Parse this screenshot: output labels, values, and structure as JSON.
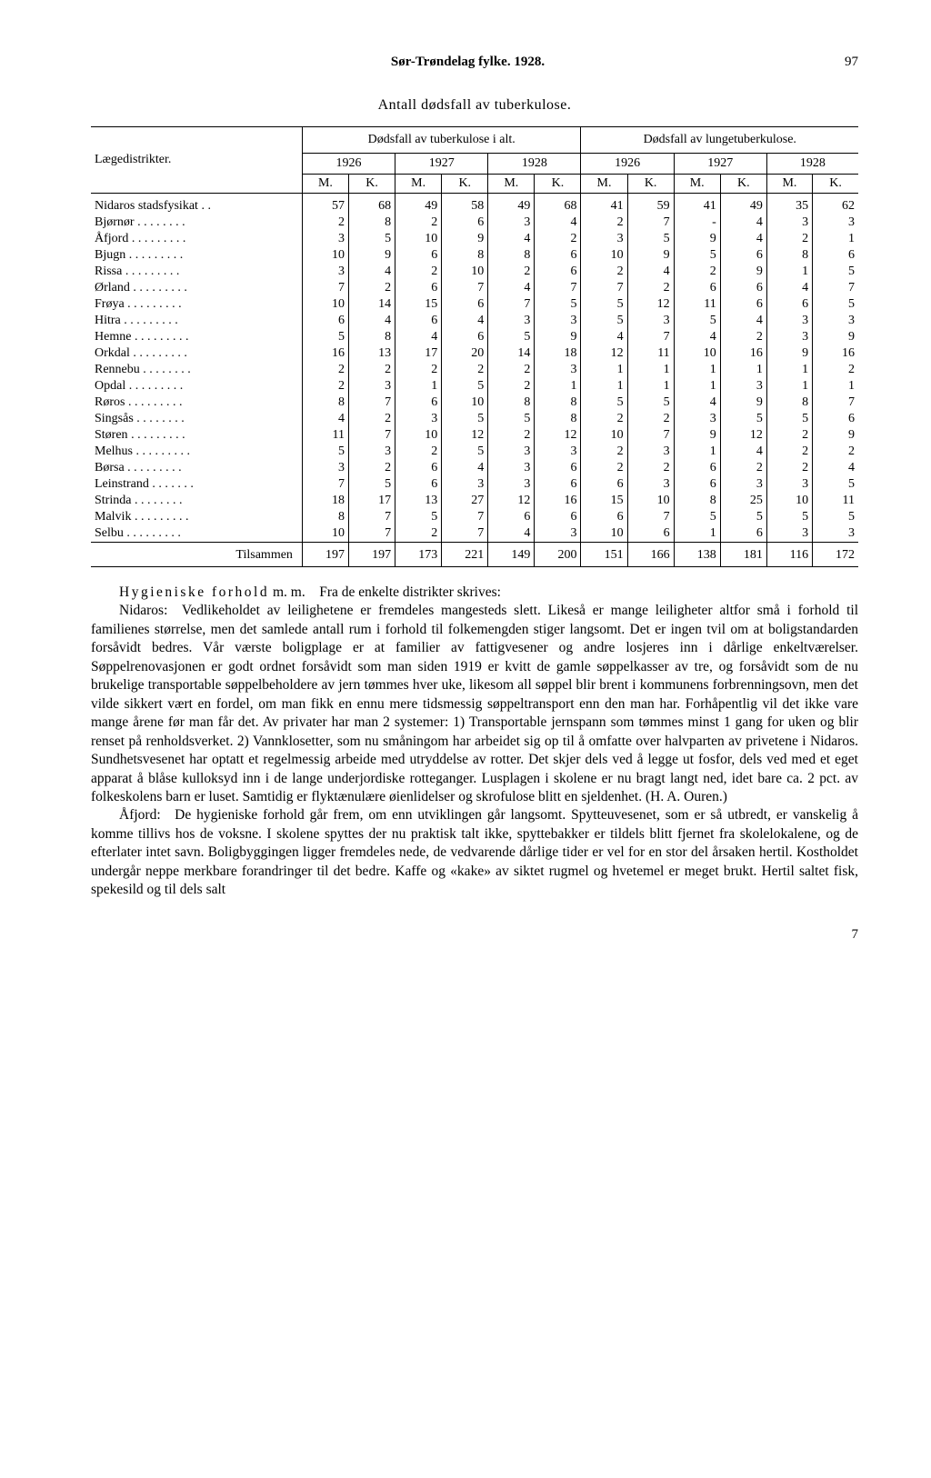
{
  "header": {
    "title": "Sør-Trøndelag fylke. 1928.",
    "page": "97"
  },
  "subtitle": "Antall dødsfall av tuberkulose.",
  "table": {
    "col_head_left": "Lægedistrikter.",
    "group1": "Dødsfall av tuberkulose i alt.",
    "group2": "Dødsfall av lungetuberkulose.",
    "years": [
      "1926",
      "1927",
      "1928",
      "1926",
      "1927",
      "1928"
    ],
    "mk": [
      "M.",
      "K.",
      "M.",
      "K.",
      "M.",
      "K.",
      "M.",
      "K.",
      "M.",
      "K.",
      "M.",
      "K."
    ],
    "rows": [
      {
        "name": "Nidaros stadsfysikat",
        "v": [
          "57",
          "68",
          "49",
          "58",
          "49",
          "68",
          "41",
          "59",
          "41",
          "49",
          "35",
          "62"
        ]
      },
      {
        "name": "Bjørnør",
        "v": [
          "2",
          "8",
          "2",
          "6",
          "3",
          "4",
          "2",
          "7",
          "-",
          "4",
          "3",
          "3"
        ]
      },
      {
        "name": "Åfjord",
        "v": [
          "3",
          "5",
          "10",
          "9",
          "4",
          "2",
          "3",
          "5",
          "9",
          "4",
          "2",
          "1"
        ]
      },
      {
        "name": "Bjugn",
        "v": [
          "10",
          "9",
          "6",
          "8",
          "8",
          "6",
          "10",
          "9",
          "5",
          "6",
          "8",
          "6"
        ]
      },
      {
        "name": "Rissa",
        "v": [
          "3",
          "4",
          "2",
          "10",
          "2",
          "6",
          "2",
          "4",
          "2",
          "9",
          "1",
          "5"
        ]
      },
      {
        "name": "Ørland",
        "v": [
          "7",
          "2",
          "6",
          "7",
          "4",
          "7",
          "7",
          "2",
          "6",
          "6",
          "4",
          "7"
        ]
      },
      {
        "name": "Frøya",
        "v": [
          "10",
          "14",
          "15",
          "6",
          "7",
          "5",
          "5",
          "12",
          "11",
          "6",
          "6",
          "5"
        ]
      },
      {
        "name": "Hitra",
        "v": [
          "6",
          "4",
          "6",
          "4",
          "3",
          "3",
          "5",
          "3",
          "5",
          "4",
          "3",
          "3"
        ]
      },
      {
        "name": "Hemne",
        "v": [
          "5",
          "8",
          "4",
          "6",
          "5",
          "9",
          "4",
          "7",
          "4",
          "2",
          "3",
          "9"
        ]
      },
      {
        "name": "Orkdal",
        "v": [
          "16",
          "13",
          "17",
          "20",
          "14",
          "18",
          "12",
          "11",
          "10",
          "16",
          "9",
          "16"
        ]
      },
      {
        "name": "Rennebu",
        "v": [
          "2",
          "2",
          "2",
          "2",
          "2",
          "3",
          "1",
          "1",
          "1",
          "1",
          "1",
          "2"
        ]
      },
      {
        "name": "Opdal",
        "v": [
          "2",
          "3",
          "1",
          "5",
          "2",
          "1",
          "1",
          "1",
          "1",
          "3",
          "1",
          "1"
        ]
      },
      {
        "name": "Røros",
        "v": [
          "8",
          "7",
          "6",
          "10",
          "8",
          "8",
          "5",
          "5",
          "4",
          "9",
          "8",
          "7"
        ]
      },
      {
        "name": "Singsås",
        "v": [
          "4",
          "2",
          "3",
          "5",
          "5",
          "8",
          "2",
          "2",
          "3",
          "5",
          "5",
          "6"
        ]
      },
      {
        "name": "Støren",
        "v": [
          "11",
          "7",
          "10",
          "12",
          "2",
          "12",
          "10",
          "7",
          "9",
          "12",
          "2",
          "9"
        ]
      },
      {
        "name": "Melhus",
        "v": [
          "5",
          "3",
          "2",
          "5",
          "3",
          "3",
          "2",
          "3",
          "1",
          "4",
          "2",
          "2"
        ]
      },
      {
        "name": "Børsa",
        "v": [
          "3",
          "2",
          "6",
          "4",
          "3",
          "6",
          "2",
          "2",
          "6",
          "2",
          "2",
          "4"
        ]
      },
      {
        "name": "Leinstrand",
        "v": [
          "7",
          "5",
          "6",
          "3",
          "3",
          "6",
          "6",
          "3",
          "6",
          "3",
          "3",
          "5"
        ]
      },
      {
        "name": "Strinda",
        "v": [
          "18",
          "17",
          "13",
          "27",
          "12",
          "16",
          "15",
          "10",
          "8",
          "25",
          "10",
          "11"
        ]
      },
      {
        "name": "Malvik",
        "v": [
          "8",
          "7",
          "5",
          "7",
          "6",
          "6",
          "6",
          "7",
          "5",
          "5",
          "5",
          "5"
        ]
      },
      {
        "name": "Selbu",
        "v": [
          "10",
          "7",
          "2",
          "7",
          "4",
          "3",
          "10",
          "6",
          "1",
          "6",
          "3",
          "3"
        ]
      }
    ],
    "sum_label": "Tilsammen",
    "sum": [
      "197",
      "197",
      "173",
      "221",
      "149",
      "200",
      "151",
      "166",
      "138",
      "181",
      "116",
      "172"
    ]
  },
  "body": {
    "p1a": "Hygieniske forhold",
    "p1b": " m. m. Fra de enkelte distrikter skrives:",
    "p2": "Nidaros: Vedlikeholdet av leilighetene er fremdeles mangesteds slett. Likeså er mange leiligheter altfor små i forhold til familienes størrelse, men det samlede antall rum i forhold til folkemengden stiger langsomt. Det er ingen tvil om at boligstandarden forsåvidt bedres. Vår værste boligplage er at familier av fattigvesener og andre losjeres inn i dårlige enkeltværelser. Søppelrenovasjonen er godt ordnet forsåvidt som man siden 1919 er kvitt de gamle søppelkasser av tre, og forsåvidt som de nu brukelige transportable søppelbeholdere av jern tømmes hver uke, likesom all søppel blir brent i kommunens forbrenningsovn, men det vilde sikkert vært en fordel, om man fikk en ennu mere tidsmessig søppeltransport enn den man har. Forhåpentlig vil det ikke vare mange årene før man får det. Av privater har man 2 systemer: 1) Transportable jernspann som tømmes minst 1 gang for uken og blir renset på renholdsverket. 2) Vannklosetter, som nu småningom har arbeidet sig op til å omfatte over halvparten av privetene i Nidaros. Sundhetsvesenet har optatt et regelmessig arbeide med utryddelse av rotter. Det skjer dels ved å legge ut fosfor, dels ved med et eget apparat å blåse kulloksyd inn i de lange underjordiske rotteganger. Lusplagen i skolene er nu bragt langt ned, idet bare ca. 2 pct. av folkeskolens barn er luset. Samtidig er flyktænulære øienlidelser og skrofulose blitt en sjeldenhet. (H. A. Ouren.)",
    "p3": "Åfjord: De hygieniske forhold går frem, om enn utviklingen går langsomt. Spytteuvesenet, som er så utbredt, er vanskelig å komme tillivs hos de voksne. I skolene spyttes der nu praktisk talt ikke, spyttebakker er tildels blitt fjernet fra skolelokalene, og de efterlater intet savn. Boligbyggingen ligger fremdeles nede, de vedvarende dårlige tider er vel for en stor del årsaken hertil. Kostholdet undergår neppe merkbare forandringer til det bedre. Kaffe og «kake» av siktet rugmel og hvetemel er meget brukt. Hertil saltet fisk, spekesild og til dels salt"
  },
  "footer_num": "7"
}
